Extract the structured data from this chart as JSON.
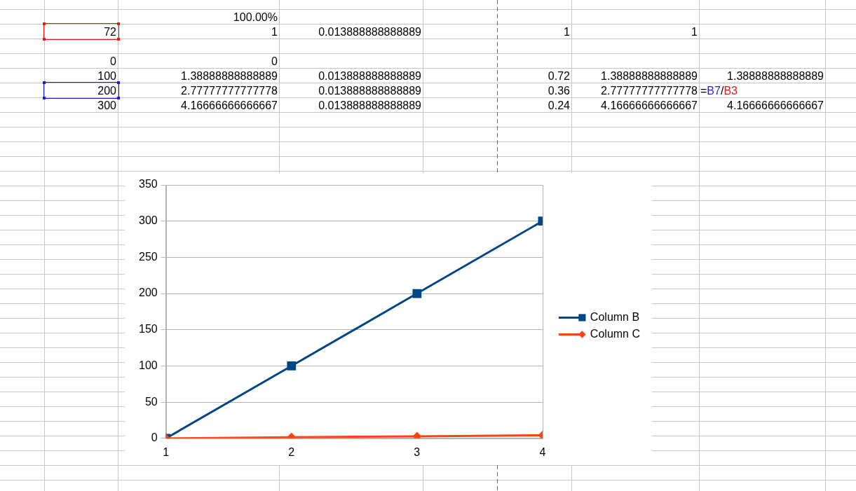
{
  "chart_data": {
    "type": "line",
    "x": [
      1,
      2,
      3,
      4
    ],
    "xlim": [
      1,
      4
    ],
    "xticks": [
      1,
      2,
      3,
      4
    ],
    "ylim": [
      0,
      350
    ],
    "yticks": [
      0,
      50,
      100,
      150,
      200,
      250,
      300,
      350
    ],
    "grid": "y",
    "legend": "right",
    "line_style": "solid",
    "series": [
      {
        "name": "Column B",
        "color": "#004586",
        "marker": "square",
        "values": [
          0,
          100,
          200,
          300
        ]
      },
      {
        "name": "Column C",
        "color": "#ff420e",
        "marker": "diamond",
        "values": [
          0,
          1.4,
          2.8,
          4.2
        ]
      }
    ],
    "annotations": [
      "100.00%",
      "72",
      "1",
      "0.013888888888889",
      "1",
      "1",
      "0",
      "0",
      "100",
      "1.38888888888889",
      "0.013888888888889",
      "0.72",
      "1.38888888888889",
      "1.38888888888889",
      "200",
      "2.77777777777778",
      "0.013888888888889",
      "0.36",
      "2.77777777777778",
      "=B7/B3",
      "300",
      "4.16666666666667",
      "0.013888888888889",
      "0.24",
      "4.16666666666667",
      "4.16666666666667"
    ]
  }
}
